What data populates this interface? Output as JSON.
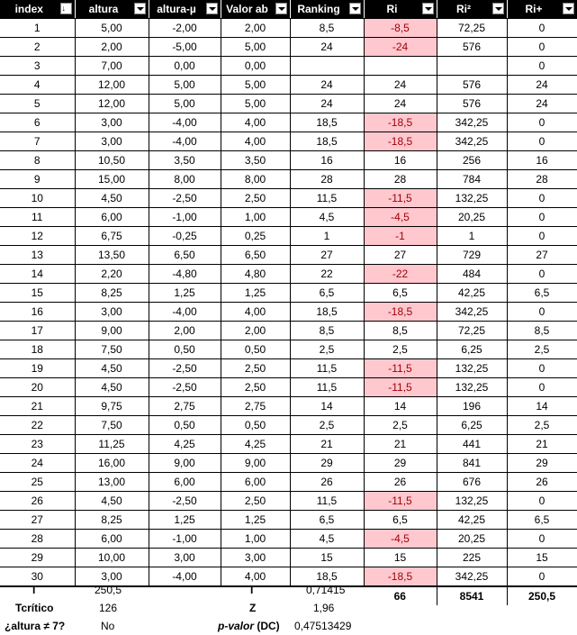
{
  "headers": [
    {
      "label": "index",
      "sort_icon": "sort-ascending-icon"
    },
    {
      "label": "altura"
    },
    {
      "label": "altura-µ"
    },
    {
      "label": "Valor ab"
    },
    {
      "label": "Ranking"
    },
    {
      "label": "Ri"
    },
    {
      "label": "Ri²"
    },
    {
      "label": "Ri+"
    }
  ],
  "rows": [
    {
      "index": "1",
      "altura": "5,00",
      "diff": "-2,00",
      "abs": "2,00",
      "rank": "8,5",
      "ri": "-8,5",
      "ri2": "72,25",
      "ripos": "0",
      "neg": true
    },
    {
      "index": "2",
      "altura": "2,00",
      "diff": "-5,00",
      "abs": "5,00",
      "rank": "24",
      "ri": "-24",
      "ri2": "576",
      "ripos": "0",
      "neg": true
    },
    {
      "index": "3",
      "altura": "7,00",
      "diff": "0,00",
      "abs": "0,00",
      "rank": "",
      "ri": "",
      "ri2": "",
      "ripos": "0",
      "neg": false
    },
    {
      "index": "4",
      "altura": "12,00",
      "diff": "5,00",
      "abs": "5,00",
      "rank": "24",
      "ri": "24",
      "ri2": "576",
      "ripos": "24",
      "neg": false
    },
    {
      "index": "5",
      "altura": "12,00",
      "diff": "5,00",
      "abs": "5,00",
      "rank": "24",
      "ri": "24",
      "ri2": "576",
      "ripos": "24",
      "neg": false
    },
    {
      "index": "6",
      "altura": "3,00",
      "diff": "-4,00",
      "abs": "4,00",
      "rank": "18,5",
      "ri": "-18,5",
      "ri2": "342,25",
      "ripos": "0",
      "neg": true
    },
    {
      "index": "7",
      "altura": "3,00",
      "diff": "-4,00",
      "abs": "4,00",
      "rank": "18,5",
      "ri": "-18,5",
      "ri2": "342,25",
      "ripos": "0",
      "neg": true
    },
    {
      "index": "8",
      "altura": "10,50",
      "diff": "3,50",
      "abs": "3,50",
      "rank": "16",
      "ri": "16",
      "ri2": "256",
      "ripos": "16",
      "neg": false
    },
    {
      "index": "9",
      "altura": "15,00",
      "diff": "8,00",
      "abs": "8,00",
      "rank": "28",
      "ri": "28",
      "ri2": "784",
      "ripos": "28",
      "neg": false
    },
    {
      "index": "10",
      "altura": "4,50",
      "diff": "-2,50",
      "abs": "2,50",
      "rank": "11,5",
      "ri": "-11,5",
      "ri2": "132,25",
      "ripos": "0",
      "neg": true
    },
    {
      "index": "11",
      "altura": "6,00",
      "diff": "-1,00",
      "abs": "1,00",
      "rank": "4,5",
      "ri": "-4,5",
      "ri2": "20,25",
      "ripos": "0",
      "neg": true
    },
    {
      "index": "12",
      "altura": "6,75",
      "diff": "-0,25",
      "abs": "0,25",
      "rank": "1",
      "ri": "-1",
      "ri2": "1",
      "ripos": "0",
      "neg": true
    },
    {
      "index": "13",
      "altura": "13,50",
      "diff": "6,50",
      "abs": "6,50",
      "rank": "27",
      "ri": "27",
      "ri2": "729",
      "ripos": "27",
      "neg": false
    },
    {
      "index": "14",
      "altura": "2,20",
      "diff": "-4,80",
      "abs": "4,80",
      "rank": "22",
      "ri": "-22",
      "ri2": "484",
      "ripos": "0",
      "neg": true
    },
    {
      "index": "15",
      "altura": "8,25",
      "diff": "1,25",
      "abs": "1,25",
      "rank": "6,5",
      "ri": "6,5",
      "ri2": "42,25",
      "ripos": "6,5",
      "neg": false
    },
    {
      "index": "16",
      "altura": "3,00",
      "diff": "-4,00",
      "abs": "4,00",
      "rank": "18,5",
      "ri": "-18,5",
      "ri2": "342,25",
      "ripos": "0",
      "neg": true
    },
    {
      "index": "17",
      "altura": "9,00",
      "diff": "2,00",
      "abs": "2,00",
      "rank": "8,5",
      "ri": "8,5",
      "ri2": "72,25",
      "ripos": "8,5",
      "neg": false
    },
    {
      "index": "18",
      "altura": "7,50",
      "diff": "0,50",
      "abs": "0,50",
      "rank": "2,5",
      "ri": "2,5",
      "ri2": "6,25",
      "ripos": "2,5",
      "neg": false
    },
    {
      "index": "19",
      "altura": "4,50",
      "diff": "-2,50",
      "abs": "2,50",
      "rank": "11,5",
      "ri": "-11,5",
      "ri2": "132,25",
      "ripos": "0",
      "neg": true
    },
    {
      "index": "20",
      "altura": "4,50",
      "diff": "-2,50",
      "abs": "2,50",
      "rank": "11,5",
      "ri": "-11,5",
      "ri2": "132,25",
      "ripos": "0",
      "neg": true
    },
    {
      "index": "21",
      "altura": "9,75",
      "diff": "2,75",
      "abs": "2,75",
      "rank": "14",
      "ri": "14",
      "ri2": "196",
      "ripos": "14",
      "neg": false
    },
    {
      "index": "22",
      "altura": "7,50",
      "diff": "0,50",
      "abs": "0,50",
      "rank": "2,5",
      "ri": "2,5",
      "ri2": "6,25",
      "ripos": "2,5",
      "neg": false
    },
    {
      "index": "23",
      "altura": "11,25",
      "diff": "4,25",
      "abs": "4,25",
      "rank": "21",
      "ri": "21",
      "ri2": "441",
      "ripos": "21",
      "neg": false
    },
    {
      "index": "24",
      "altura": "16,00",
      "diff": "9,00",
      "abs": "9,00",
      "rank": "29",
      "ri": "29",
      "ri2": "841",
      "ripos": "29",
      "neg": false
    },
    {
      "index": "25",
      "altura": "13,00",
      "diff": "6,00",
      "abs": "6,00",
      "rank": "26",
      "ri": "26",
      "ri2": "676",
      "ripos": "26",
      "neg": false
    },
    {
      "index": "26",
      "altura": "4,50",
      "diff": "-2,50",
      "abs": "2,50",
      "rank": "11,5",
      "ri": "-11,5",
      "ri2": "132,25",
      "ripos": "0",
      "neg": true
    },
    {
      "index": "27",
      "altura": "8,25",
      "diff": "1,25",
      "abs": "1,25",
      "rank": "6,5",
      "ri": "6,5",
      "ri2": "42,25",
      "ripos": "6,5",
      "neg": false
    },
    {
      "index": "28",
      "altura": "6,00",
      "diff": "-1,00",
      "abs": "1,00",
      "rank": "4,5",
      "ri": "-4,5",
      "ri2": "20,25",
      "ripos": "0",
      "neg": true
    },
    {
      "index": "29",
      "altura": "10,00",
      "diff": "3,00",
      "abs": "3,00",
      "rank": "15",
      "ri": "15",
      "ri2": "225",
      "ripos": "15",
      "neg": false
    },
    {
      "index": "30",
      "altura": "3,00",
      "diff": "-4,00",
      "abs": "4,00",
      "rank": "18,5",
      "ri": "-18,5",
      "ri2": "342,25",
      "ripos": "0",
      "neg": true
    }
  ],
  "totals": {
    "ri": "66",
    "ri2": "8541",
    "ripos": "250,5"
  },
  "summary": {
    "t_label": "T",
    "t_value": "250,5",
    "tcrit_label": "Tcrítico",
    "tcrit_value": "126",
    "question_label": "¿altura ≠ 7?",
    "question_value": "No",
    "t2_label": "T",
    "t2_value": "0,71415",
    "z_label": "Z",
    "z_value": "1,96",
    "p_label_italic": "p-valor",
    "p_label_rest": " (DC)",
    "p_value": "0,47513429"
  },
  "colors": {
    "header_bg": "#000000",
    "neg_fill": "#ffc7ce",
    "neg_text": "#9c0006"
  }
}
